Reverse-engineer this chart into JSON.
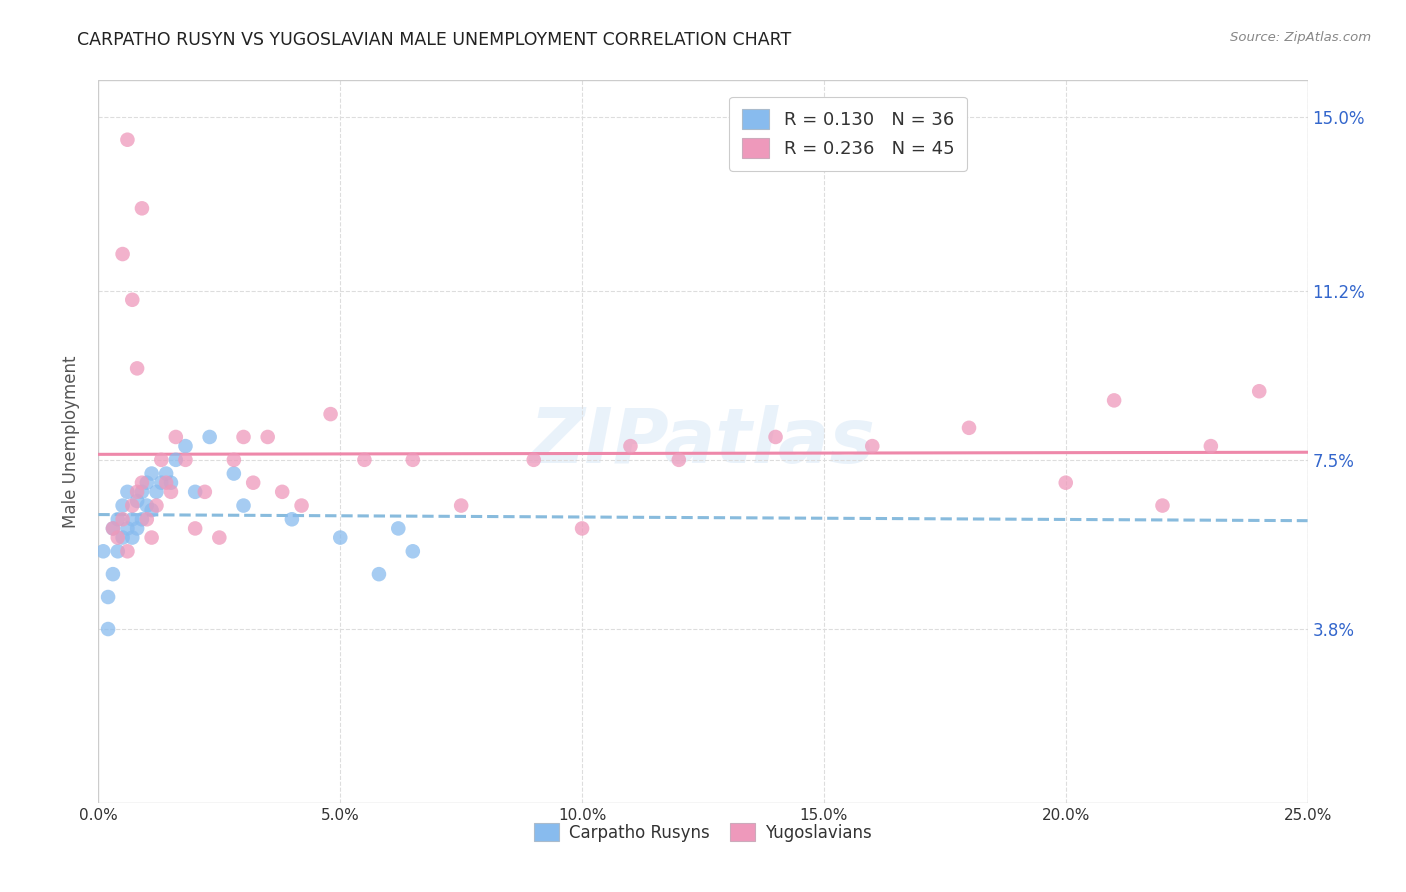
{
  "title": "CARPATHO RUSYN VS YUGOSLAVIAN MALE UNEMPLOYMENT CORRELATION CHART",
  "source": "Source: ZipAtlas.com",
  "ylabel": "Male Unemployment",
  "y_tick_vals": [
    0.038,
    0.075,
    0.112,
    0.15
  ],
  "y_tick_labels": [
    "3.8%",
    "7.5%",
    "11.2%",
    "15.0%"
  ],
  "x_tick_vals": [
    0.0,
    0.05,
    0.1,
    0.15,
    0.2,
    0.25
  ],
  "x_tick_labels": [
    "0.0%",
    "5.0%",
    "10.0%",
    "15.0%",
    "20.0%",
    "25.0%"
  ],
  "xlim": [
    0.0,
    0.25
  ],
  "ylim": [
    0.0,
    0.158
  ],
  "watermark": "ZIPatlas",
  "blue_color": "#88bbee",
  "pink_color": "#ee99bb",
  "trendline_blue_color": "#88bbdd",
  "trendline_pink_color": "#ee88aa",
  "grid_color": "#dddddd",
  "background_color": "#ffffff",
  "title_color": "#222222",
  "axis_label_color": "#555555",
  "tick_color_right": "#3366cc",
  "tick_color_bottom": "#333333",
  "legend1_labels": [
    "R = 0.130   N = 36",
    "R = 0.236   N = 45"
  ],
  "legend2_labels": [
    "Carpatho Rusyns",
    "Yugoslavians"
  ],
  "carpatho_x": [
    0.001,
    0.002,
    0.002,
    0.003,
    0.003,
    0.004,
    0.004,
    0.005,
    0.005,
    0.006,
    0.006,
    0.007,
    0.007,
    0.008,
    0.008,
    0.009,
    0.009,
    0.01,
    0.01,
    0.011,
    0.011,
    0.012,
    0.013,
    0.014,
    0.015,
    0.016,
    0.018,
    0.02,
    0.023,
    0.028,
    0.03,
    0.04,
    0.05,
    0.058,
    0.062,
    0.065
  ],
  "carpatho_y": [
    0.055,
    0.038,
    0.045,
    0.05,
    0.06,
    0.055,
    0.062,
    0.058,
    0.065,
    0.06,
    0.068,
    0.058,
    0.062,
    0.06,
    0.066,
    0.062,
    0.068,
    0.065,
    0.07,
    0.064,
    0.072,
    0.068,
    0.07,
    0.072,
    0.07,
    0.075,
    0.078,
    0.068,
    0.08,
    0.072,
    0.065,
    0.062,
    0.058,
    0.05,
    0.06,
    0.055
  ],
  "yugoslav_x": [
    0.003,
    0.004,
    0.005,
    0.006,
    0.007,
    0.008,
    0.009,
    0.01,
    0.011,
    0.012,
    0.013,
    0.014,
    0.015,
    0.016,
    0.018,
    0.02,
    0.022,
    0.025,
    0.028,
    0.03,
    0.032,
    0.035,
    0.038,
    0.042,
    0.048,
    0.055,
    0.065,
    0.075,
    0.09,
    0.1,
    0.11,
    0.12,
    0.14,
    0.16,
    0.18,
    0.2,
    0.21,
    0.22,
    0.23,
    0.24,
    0.005,
    0.006,
    0.007,
    0.008,
    0.009
  ],
  "yugoslav_y": [
    0.06,
    0.058,
    0.062,
    0.055,
    0.065,
    0.068,
    0.07,
    0.062,
    0.058,
    0.065,
    0.075,
    0.07,
    0.068,
    0.08,
    0.075,
    0.06,
    0.068,
    0.058,
    0.075,
    0.08,
    0.07,
    0.08,
    0.068,
    0.065,
    0.085,
    0.075,
    0.075,
    0.065,
    0.075,
    0.06,
    0.078,
    0.075,
    0.08,
    0.078,
    0.082,
    0.07,
    0.088,
    0.065,
    0.078,
    0.09,
    0.12,
    0.145,
    0.11,
    0.095,
    0.13
  ]
}
